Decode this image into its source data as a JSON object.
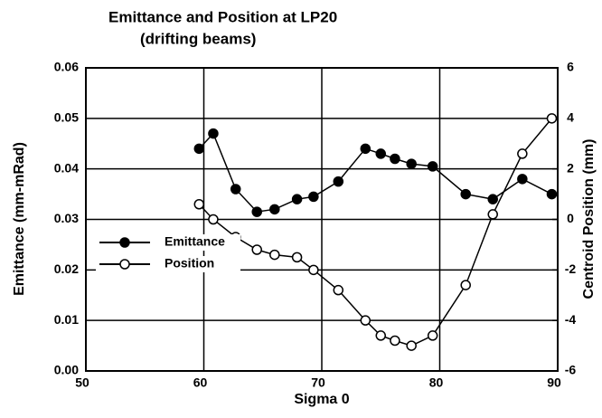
{
  "chart_data": {
    "type": "line",
    "title": "Emittance and Position at LP20",
    "subtitle": "(drifting beams)",
    "x_label": "Sigma 0",
    "y_label": "Emittance (mm-mRad)",
    "y2_label": "Centroid Position (mm)",
    "x": [
      59.6,
      60.8,
      62.7,
      64.5,
      66,
      67.9,
      69.3,
      71.4,
      73.7,
      75,
      76.2,
      77.6,
      79.4,
      82.2,
      84.5,
      87,
      89.5
    ],
    "series": [
      {
        "name": "Emittance",
        "color": "#000000",
        "marker": "filled",
        "values": [
          0.044,
          0.047,
          0.036,
          0.0315,
          0.032,
          0.034,
          0.0345,
          0.0375,
          0.044,
          0.043,
          0.042,
          0.041,
          0.0405,
          0.035,
          0.034,
          0.038,
          0.035
        ]
      },
      {
        "name": "Position",
        "color": "#000000",
        "marker": "open",
        "axis": "y2",
        "values": [
          0.6,
          0,
          -0.7,
          -1.2,
          -1.4,
          -1.5,
          -2,
          -2.8,
          -4,
          -4.6,
          -4.8,
          -5,
          -4.6,
          -2.6,
          0.2,
          2.6,
          4
        ]
      }
    ],
    "xlim": [
      50,
      90
    ],
    "xticks": [
      50,
      60,
      70,
      80,
      90
    ],
    "ylim": [
      0,
      0.06
    ],
    "yticks": [
      {
        "value": 0,
        "label": "0.00"
      },
      {
        "value": 0.01,
        "label": "0.01"
      },
      {
        "value": 0.02,
        "label": "0.02"
      },
      {
        "value": 0.03,
        "label": "0.03"
      },
      {
        "value": 0.04,
        "label": "0.04"
      },
      {
        "value": 0.05,
        "label": "0.05"
      },
      {
        "value": 0.06,
        "label": "0.06"
      }
    ],
    "y2lim": [
      -6,
      6
    ],
    "y2ticks": [
      -6,
      -4,
      -2,
      0,
      2,
      4,
      6
    ],
    "grid": true,
    "legend": "left"
  }
}
